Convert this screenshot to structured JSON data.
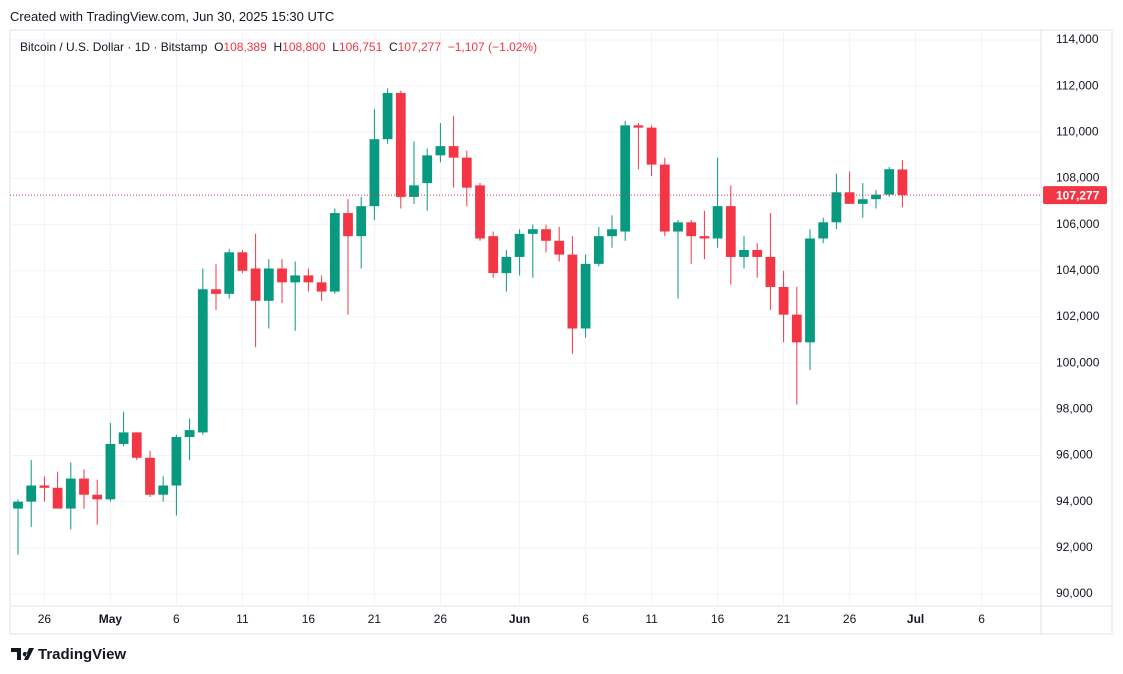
{
  "header": {
    "created": "Created with TradingView.com, Jun 30, 2025 15:30 UTC",
    "symbol": "Bitcoin / U.S. Dollar · 1D · Bitstamp",
    "o_label": "O",
    "open": "108,389",
    "h_label": "H",
    "high": "108,800",
    "l_label": "L",
    "low": "106,751",
    "c_label": "C",
    "close": "107,277",
    "change": "−1,107 (−1.02%)"
  },
  "footer": {
    "brand": "TradingView"
  },
  "chart_data": {
    "type": "candlestick",
    "categories": [
      null,
      null,
      "26",
      null,
      null,
      null,
      null,
      "May",
      null,
      null,
      null,
      null,
      "6",
      null,
      null,
      null,
      null,
      "11",
      null,
      null,
      null,
      null,
      "16",
      null,
      null,
      null,
      null,
      "21",
      null,
      null,
      null,
      null,
      "26",
      null,
      null,
      null,
      null,
      null,
      "Jun",
      null,
      null,
      null,
      null,
      "6",
      null,
      null,
      null,
      null,
      "11",
      null,
      null,
      null,
      null,
      "16",
      null,
      null,
      null,
      null,
      "21",
      null,
      null,
      null,
      null,
      "26",
      null,
      null,
      null,
      null,
      "Jul",
      null,
      null,
      null,
      null,
      "6",
      null,
      null,
      null,
      null
    ],
    "open": [
      93700,
      94000,
      94700,
      94600,
      93700,
      95000,
      94300,
      94100,
      96500,
      97000,
      95900,
      94300,
      94700,
      96800,
      97000,
      103200,
      103000,
      104800,
      104100,
      102700,
      104100,
      103500,
      103800,
      103500,
      103100,
      106500,
      105500,
      106800,
      109700,
      111700,
      107200,
      107800,
      109000,
      109400,
      108900,
      107700,
      105500,
      103900,
      104600,
      105600,
      105800,
      105300,
      104700,
      101500,
      104300,
      105500,
      105700,
      110300,
      110200,
      108600,
      105700,
      106100,
      105500,
      105400,
      106800,
      104600,
      104900,
      104600,
      103300,
      102100,
      100900,
      105400,
      106100,
      107400,
      106900,
      107100,
      107300,
      108389,
      null,
      null,
      null,
      null,
      null,
      null,
      null,
      null,
      null,
      null
    ],
    "high": [
      94100,
      95800,
      95100,
      95300,
      95700,
      95400,
      94950,
      97400,
      97900,
      97000,
      96200,
      95100,
      96900,
      97600,
      104100,
      104300,
      104950,
      104900,
      105600,
      104500,
      104500,
      104400,
      104100,
      103800,
      106700,
      107100,
      107200,
      111000,
      111900,
      111800,
      109600,
      109300,
      110400,
      110700,
      109200,
      107800,
      105700,
      104900,
      105800,
      106000,
      106000,
      105900,
      105500,
      104700,
      105900,
      106400,
      110500,
      110400,
      110300,
      108900,
      106200,
      106200,
      106600,
      108900,
      107700,
      105500,
      105200,
      106500,
      104000,
      103300,
      105800,
      106300,
      108200,
      108300,
      107800,
      107500,
      108500,
      108800,
      null,
      null,
      null,
      null,
      null,
      null,
      null,
      null,
      null,
      null
    ],
    "low": [
      91700,
      92900,
      94000,
      93700,
      92800,
      93700,
      93000,
      94000,
      96400,
      95800,
      94200,
      94000,
      93400,
      95800,
      96900,
      102300,
      102800,
      103900,
      100700,
      101500,
      102600,
      101400,
      103100,
      102700,
      103000,
      102100,
      104100,
      106200,
      109500,
      106700,
      106900,
      106600,
      108700,
      107600,
      106800,
      105300,
      103700,
      103100,
      103800,
      103700,
      104800,
      104400,
      100400,
      101100,
      104200,
      105000,
      105300,
      108400,
      108100,
      105500,
      102800,
      104300,
      104500,
      105000,
      103400,
      104100,
      103700,
      102300,
      100900,
      98200,
      99700,
      105200,
      105800,
      106900,
      106300,
      106700,
      107200,
      106751,
      null,
      null,
      null,
      null,
      null,
      null,
      null,
      null,
      null,
      null
    ],
    "close": [
      94000,
      94700,
      94600,
      93700,
      95000,
      94300,
      94100,
      96500,
      97000,
      95900,
      94300,
      94700,
      96800,
      97100,
      103200,
      103000,
      104800,
      104000,
      102700,
      104100,
      103500,
      103800,
      103500,
      103100,
      106500,
      105500,
      106800,
      109700,
      111700,
      107200,
      107700,
      109000,
      109400,
      108900,
      107600,
      105400,
      103900,
      104600,
      105600,
      105800,
      105300,
      104700,
      101500,
      104300,
      105500,
      105800,
      110300,
      110200,
      108600,
      105700,
      106100,
      105500,
      105400,
      106800,
      104600,
      104900,
      104600,
      103300,
      102100,
      100900,
      105400,
      106100,
      107400,
      106900,
      107100,
      107300,
      108400,
      107277,
      null,
      null,
      null,
      null,
      null,
      null,
      null,
      null,
      null,
      null
    ],
    "up_color": "#089981",
    "down_color": "#f23645",
    "ylim": [
      89480,
      114430
    ],
    "yticks": [
      {
        "value": 90000,
        "label": "90,000"
      },
      {
        "value": 92000,
        "label": "92,000"
      },
      {
        "value": 94000,
        "label": "94,000"
      },
      {
        "value": 96000,
        "label": "96,000"
      },
      {
        "value": 98000,
        "label": "98,000"
      },
      {
        "value": 100000,
        "label": "100,000"
      },
      {
        "value": 102000,
        "label": "102,000"
      },
      {
        "value": 104000,
        "label": "104,000"
      },
      {
        "value": 106000,
        "label": "106,000"
      },
      {
        "value": 108000,
        "label": "108,000"
      },
      {
        "value": 110000,
        "label": "110,000"
      },
      {
        "value": 112000,
        "label": "112,000"
      },
      {
        "value": 114000,
        "label": "114,000"
      }
    ],
    "last_price": {
      "value": 107277,
      "label": "107,277"
    },
    "grid": true
  }
}
